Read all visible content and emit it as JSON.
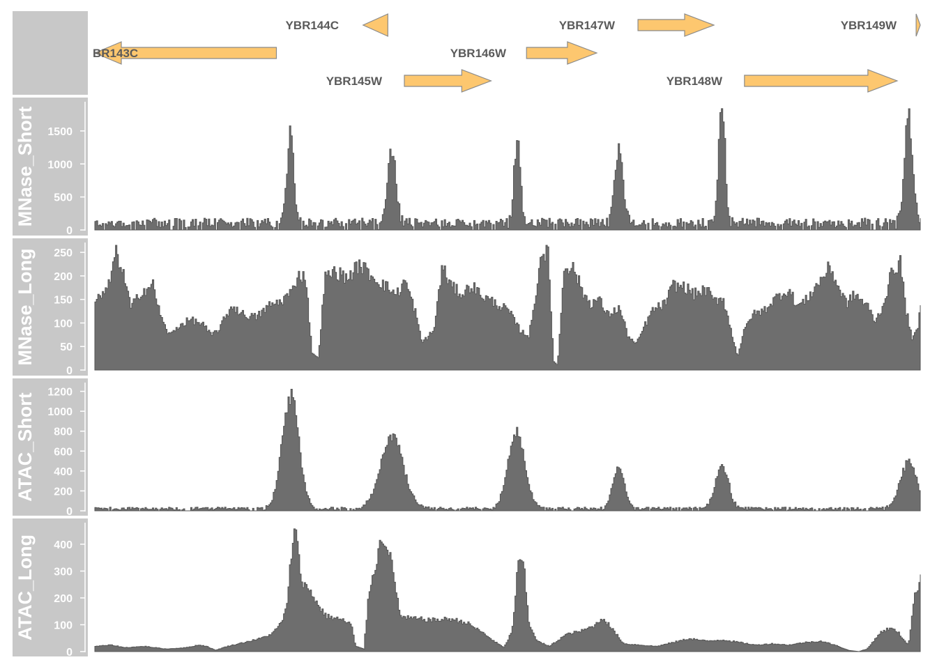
{
  "colors": {
    "panel_background": "#c8c8c8",
    "gene_fill": "#fdc76f",
    "gene_border": "#8a8a8a",
    "signal_fill": "#6e6e6e",
    "label_text": "#ffffff",
    "gene_text": "#5a5a5a"
  },
  "chart_data": {
    "type": "area",
    "description_axis": "genomic position (shared x axis, unlabeled)",
    "x_range": [
      0,
      1
    ],
    "genes": [
      {
        "name": "BR143C",
        "strand": "-",
        "start": 0.0,
        "end": 0.22,
        "row": 2
      },
      {
        "name": "YBR144C",
        "strand": "-",
        "start": 0.325,
        "end": 0.355,
        "row": 1
      },
      {
        "name": "YBR145W",
        "strand": "+",
        "start": 0.375,
        "end": 0.48,
        "row": 3
      },
      {
        "name": "YBR146W",
        "strand": "+",
        "start": 0.523,
        "end": 0.608,
        "row": 2
      },
      {
        "name": "YBR147W",
        "strand": "+",
        "start": 0.658,
        "end": 0.75,
        "row": 1
      },
      {
        "name": "YBR148W",
        "strand": "+",
        "start": 0.787,
        "end": 0.972,
        "row": 3
      },
      {
        "name": "YBR149W",
        "strand": "+",
        "start": 0.995,
        "end": 1.0,
        "row": 1
      }
    ],
    "tracks": [
      {
        "name": "MNase_Short",
        "ylim": [
          0,
          1900
        ],
        "yticks": [
          0,
          500,
          1000,
          1500
        ],
        "peaks": [
          {
            "x": 0.236,
            "y": 1520,
            "w": 0.004
          },
          {
            "x": 0.359,
            "y": 1280,
            "w": 0.005
          },
          {
            "x": 0.511,
            "y": 1280,
            "w": 0.004
          },
          {
            "x": 0.634,
            "y": 1280,
            "w": 0.005
          },
          {
            "x": 0.759,
            "y": 1860,
            "w": 0.004
          },
          {
            "x": 0.985,
            "y": 1760,
            "w": 0.005
          }
        ],
        "baseline": 120
      },
      {
        "name": "MNase_Long",
        "ylim": [
          0,
          265
        ],
        "yticks": [
          0,
          50,
          100,
          150,
          200,
          250
        ],
        "profile": [
          [
            0.0,
            150
          ],
          [
            0.015,
            175
          ],
          [
            0.025,
            260
          ],
          [
            0.035,
            200
          ],
          [
            0.043,
            135
          ],
          [
            0.055,
            170
          ],
          [
            0.07,
            185
          ],
          [
            0.08,
            110
          ],
          [
            0.09,
            75
          ],
          [
            0.1,
            95
          ],
          [
            0.115,
            110
          ],
          [
            0.13,
            100
          ],
          [
            0.14,
            75
          ],
          [
            0.15,
            90
          ],
          [
            0.165,
            140
          ],
          [
            0.18,
            120
          ],
          [
            0.195,
            115
          ],
          [
            0.21,
            140
          ],
          [
            0.225,
            150
          ],
          [
            0.24,
            175
          ],
          [
            0.245,
            210
          ],
          [
            0.255,
            200
          ],
          [
            0.262,
            40
          ],
          [
            0.27,
            25
          ],
          [
            0.278,
            200
          ],
          [
            0.29,
            215
          ],
          [
            0.305,
            200
          ],
          [
            0.32,
            230
          ],
          [
            0.335,
            205
          ],
          [
            0.35,
            185
          ],
          [
            0.365,
            165
          ],
          [
            0.375,
            195
          ],
          [
            0.388,
            125
          ],
          [
            0.395,
            60
          ],
          [
            0.41,
            85
          ],
          [
            0.42,
            225
          ],
          [
            0.432,
            180
          ],
          [
            0.445,
            165
          ],
          [
            0.455,
            185
          ],
          [
            0.47,
            160
          ],
          [
            0.485,
            145
          ],
          [
            0.5,
            130
          ],
          [
            0.515,
            85
          ],
          [
            0.525,
            75
          ],
          [
            0.53,
            120
          ],
          [
            0.54,
            255
          ],
          [
            0.548,
            258
          ],
          [
            0.555,
            20
          ],
          [
            0.56,
            10
          ],
          [
            0.568,
            230
          ],
          [
            0.58,
            220
          ],
          [
            0.59,
            170
          ],
          [
            0.6,
            145
          ],
          [
            0.61,
            155
          ],
          [
            0.62,
            120
          ],
          [
            0.635,
            135
          ],
          [
            0.645,
            75
          ],
          [
            0.655,
            55
          ],
          [
            0.665,
            95
          ],
          [
            0.675,
            130
          ],
          [
            0.69,
            145
          ],
          [
            0.7,
            185
          ],
          [
            0.715,
            180
          ],
          [
            0.725,
            165
          ],
          [
            0.74,
            175
          ],
          [
            0.75,
            150
          ],
          [
            0.76,
            160
          ],
          [
            0.77,
            85
          ],
          [
            0.778,
            30
          ],
          [
            0.785,
            80
          ],
          [
            0.795,
            120
          ],
          [
            0.81,
            130
          ],
          [
            0.82,
            150
          ],
          [
            0.83,
            165
          ],
          [
            0.84,
            175
          ],
          [
            0.85,
            140
          ],
          [
            0.86,
            150
          ],
          [
            0.87,
            175
          ],
          [
            0.88,
            200
          ],
          [
            0.89,
            225
          ],
          [
            0.9,
            180
          ],
          [
            0.91,
            145
          ],
          [
            0.92,
            165
          ],
          [
            0.935,
            140
          ],
          [
            0.945,
            105
          ],
          [
            0.955,
            145
          ],
          [
            0.965,
            215
          ],
          [
            0.975,
            235
          ],
          [
            0.982,
            130
          ],
          [
            0.99,
            65
          ],
          [
            0.997,
            95
          ],
          [
            1.0,
            150
          ]
        ]
      },
      {
        "name": "ATAC_Short",
        "ylim": [
          0,
          1260
        ],
        "yticks": [
          0,
          200,
          400,
          600,
          800,
          1000,
          1200
        ],
        "peaks": [
          {
            "x": 0.236,
            "y": 1230,
            "w": 0.01
          },
          {
            "x": 0.359,
            "y": 780,
            "w": 0.014
          },
          {
            "x": 0.51,
            "y": 830,
            "w": 0.01
          },
          {
            "x": 0.634,
            "y": 460,
            "w": 0.007
          },
          {
            "x": 0.759,
            "y": 460,
            "w": 0.008
          },
          {
            "x": 0.985,
            "y": 510,
            "w": 0.01
          }
        ],
        "baseline": 25
      },
      {
        "name": "ATAC_Long",
        "ylim": [
          0,
          470
        ],
        "yticks": [
          0,
          100,
          200,
          300,
          400
        ],
        "profile": [
          [
            0.0,
            20
          ],
          [
            0.02,
            25
          ],
          [
            0.035,
            15
          ],
          [
            0.06,
            20
          ],
          [
            0.085,
            10
          ],
          [
            0.11,
            15
          ],
          [
            0.125,
            25
          ],
          [
            0.135,
            20
          ],
          [
            0.145,
            5
          ],
          [
            0.16,
            20
          ],
          [
            0.18,
            35
          ],
          [
            0.2,
            50
          ],
          [
            0.215,
            70
          ],
          [
            0.225,
            110
          ],
          [
            0.232,
            170
          ],
          [
            0.237,
            360
          ],
          [
            0.24,
            455
          ],
          [
            0.245,
            430
          ],
          [
            0.25,
            260
          ],
          [
            0.26,
            235
          ],
          [
            0.27,
            175
          ],
          [
            0.28,
            135
          ],
          [
            0.295,
            125
          ],
          [
            0.31,
            105
          ],
          [
            0.315,
            20
          ],
          [
            0.325,
            10
          ],
          [
            0.332,
            240
          ],
          [
            0.34,
            340
          ],
          [
            0.347,
            440
          ],
          [
            0.355,
            400
          ],
          [
            0.362,
            270
          ],
          [
            0.37,
            130
          ],
          [
            0.39,
            125
          ],
          [
            0.41,
            120
          ],
          [
            0.43,
            125
          ],
          [
            0.45,
            110
          ],
          [
            0.47,
            70
          ],
          [
            0.485,
            35
          ],
          [
            0.495,
            15
          ],
          [
            0.505,
            80
          ],
          [
            0.512,
            330
          ],
          [
            0.518,
            350
          ],
          [
            0.525,
            110
          ],
          [
            0.535,
            40
          ],
          [
            0.55,
            20
          ],
          [
            0.57,
            65
          ],
          [
            0.59,
            80
          ],
          [
            0.605,
            100
          ],
          [
            0.615,
            130
          ],
          [
            0.625,
            90
          ],
          [
            0.64,
            30
          ],
          [
            0.66,
            25
          ],
          [
            0.68,
            20
          ],
          [
            0.7,
            35
          ],
          [
            0.72,
            50
          ],
          [
            0.74,
            40
          ],
          [
            0.76,
            45
          ],
          [
            0.78,
            35
          ],
          [
            0.8,
            25
          ],
          [
            0.82,
            30
          ],
          [
            0.84,
            25
          ],
          [
            0.86,
            35
          ],
          [
            0.88,
            40
          ],
          [
            0.9,
            20
          ],
          [
            0.912,
            5
          ],
          [
            0.925,
            0
          ],
          [
            0.935,
            10
          ],
          [
            0.95,
            70
          ],
          [
            0.962,
            90
          ],
          [
            0.972,
            75
          ],
          [
            0.978,
            50
          ],
          [
            0.985,
            25
          ],
          [
            0.992,
            200
          ],
          [
            1.0,
            290
          ]
        ]
      }
    ]
  }
}
